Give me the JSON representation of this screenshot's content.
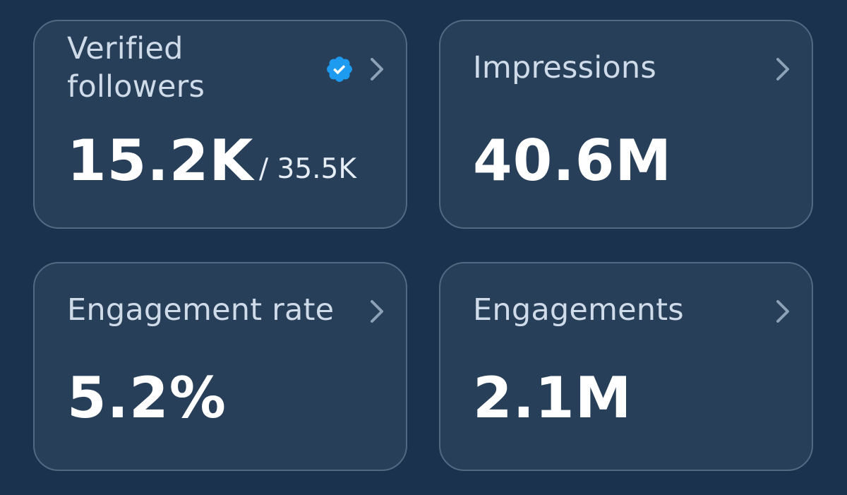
{
  "cards": [
    {
      "label": "Verified followers",
      "value": "15.2K",
      "secondary": "/ 35.5K",
      "verified_icon": "verified-badge-icon",
      "chevron_icon": "chevron-right-icon"
    },
    {
      "label": "Impressions",
      "value": "40.6M",
      "chevron_icon": "chevron-right-icon"
    },
    {
      "label": "Engagement rate",
      "value": "5.2%",
      "chevron_icon": "chevron-right-icon"
    },
    {
      "label": "Engagements",
      "value": "2.1M",
      "chevron_icon": "chevron-right-icon"
    }
  ],
  "colors": {
    "background": "#1a324d",
    "card": "#273f58",
    "card_border": "#516981",
    "label": "#cfdbe9",
    "value": "#ffffff",
    "verified_badge": "#1d9bf0"
  }
}
